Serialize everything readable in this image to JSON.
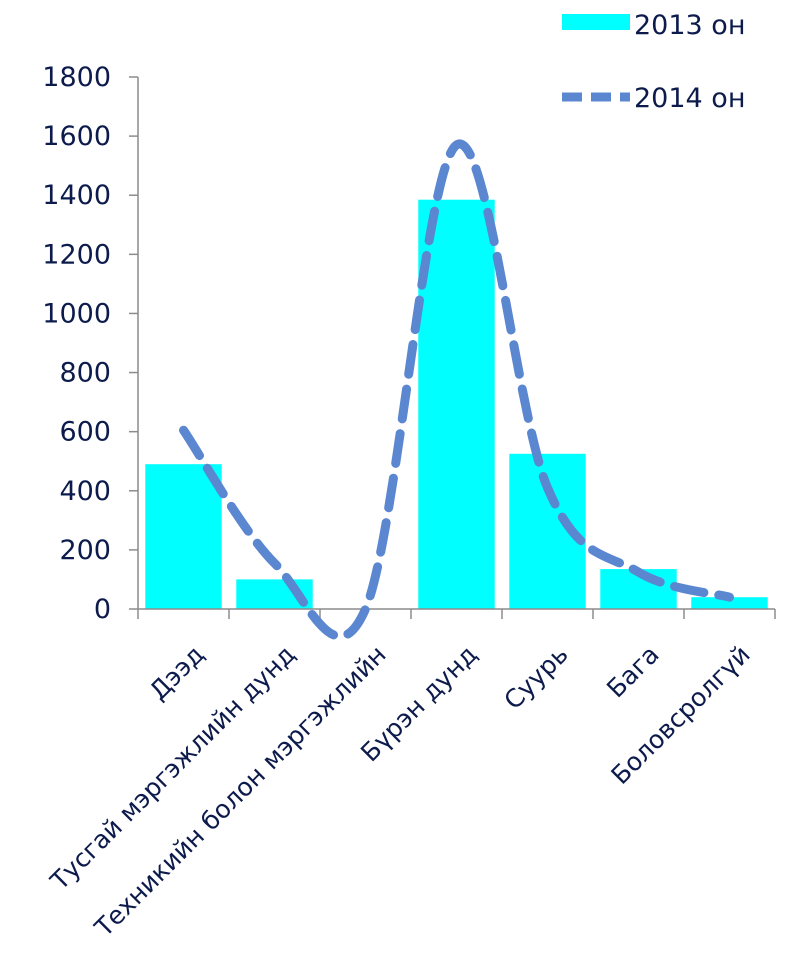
{
  "chart_data": {
    "type": "bar",
    "title": "",
    "xlabel": "",
    "ylabel": "",
    "categories": [
      "Дээд",
      "Тусгай мэргэжлийн дунд",
      "Техникийн болон мэргэжлийн",
      "Бүрэн дунд",
      "Суурь",
      "Бага",
      "Боловсролгүй"
    ],
    "ylim": [
      0,
      1800
    ],
    "yticks": [
      0,
      200,
      400,
      600,
      800,
      1000,
      1200,
      1400,
      1600,
      1800
    ],
    "grid": false,
    "legend": "top-right",
    "series": [
      {
        "name": "2013 он",
        "type": "bar",
        "color": "#00ffff",
        "values": [
          490,
          100,
          0,
          1385,
          525,
          135,
          40
        ]
      },
      {
        "name": "2014 он",
        "type": "line",
        "style": "dashed",
        "color": "#5b87d0",
        "values": [
          605,
          155,
          0,
          1570,
          410,
          125,
          40
        ]
      }
    ]
  }
}
